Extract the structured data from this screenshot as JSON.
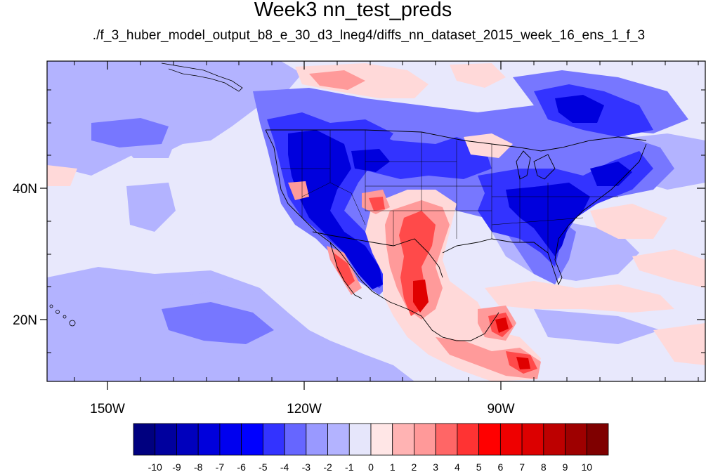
{
  "title": "Week3 nn_test_preds",
  "subtitle": "./f_3_huber_model_output_b8_e_30_d3_lneg4/diffs_nn_dataset_2015_week_16_ens_1_f_3",
  "axes": {
    "lat_ticks": [
      {
        "value": 40,
        "label": "40N"
      },
      {
        "value": 20,
        "label": "20N"
      }
    ],
    "lon_ticks": [
      {
        "value": -150,
        "label": "150W"
      },
      {
        "value": -120,
        "label": "120W"
      },
      {
        "value": -90,
        "label": "90W"
      }
    ],
    "lon_range": [
      -159.3,
      -60.5
    ],
    "lat_range": [
      10.5,
      59.5
    ]
  },
  "colorbar": {
    "levels": [
      "-10",
      "-9",
      "-8",
      "-7",
      "-6",
      "-5",
      "-4",
      "-3",
      "-2",
      "-1",
      "0",
      "1",
      "2",
      "3",
      "4",
      "5",
      "6",
      "7",
      "8",
      "9",
      "10"
    ],
    "colors": [
      "#00007f",
      "#00009e",
      "#0000bd",
      "#0000dc",
      "#0000ef",
      "#0000ff",
      "#3333ff",
      "#6666ff",
      "#9999ff",
      "#b3b3ff",
      "#e6e6fb",
      "#ffe6e6",
      "#ffb3b3",
      "#ff9999",
      "#ff6666",
      "#ff3333",
      "#ff0000",
      "#ef0000",
      "#dc0000",
      "#bd0000",
      "#9e0000",
      "#7f0000"
    ]
  },
  "field_colors": {
    "background": "#e8e8fc",
    "light_blue": "#b3b3ff",
    "mid_blue": "#7777ff",
    "blue": "#3333ff",
    "deep_blue": "#0000dd",
    "light_red": "#ffd9d9",
    "mid_red": "#ff9a9a",
    "red": "#ff4a4a",
    "deep_red": "#e00000"
  }
}
